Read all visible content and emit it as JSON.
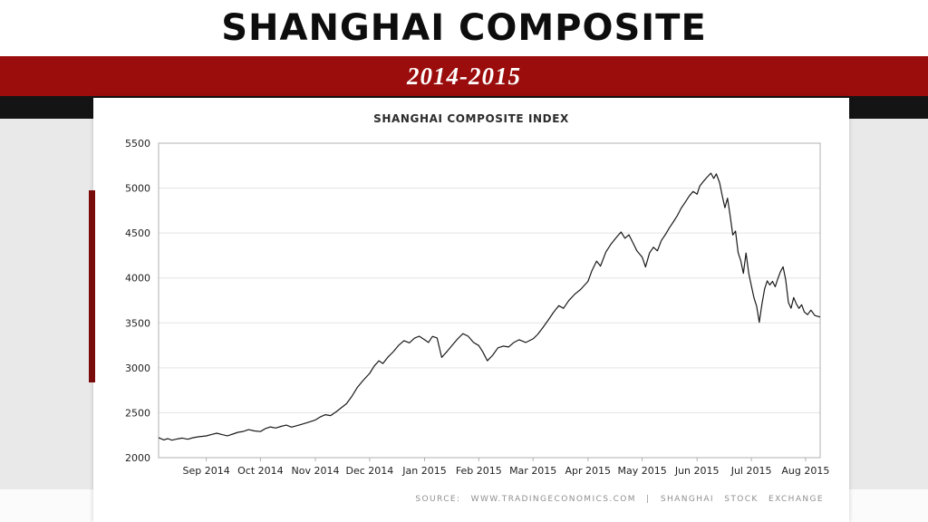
{
  "slide": {
    "title": "SHANGHAI COMPOSITE",
    "subtitle": "2014-2015"
  },
  "chart": {
    "title": "SHANGHAI COMPOSITE INDEX",
    "source": "SOURCE: WWW.TRADINGECONOMICS.COM | SHANGHAI STOCK EXCHANGE"
  },
  "colors": {
    "bg": "#e9e9e9",
    "red_band": "#9b0d0d",
    "accent_bar": "#7a0b0b",
    "black_band": "#141414",
    "grid": "#e3e3e3",
    "axis": "#b0b0b0",
    "line": "#1a1a1a"
  },
  "chart_data": {
    "type": "line",
    "title": "SHANGHAI COMPOSITE INDEX",
    "ylabel": "",
    "xlabel": "",
    "ylim": [
      2000,
      5500
    ],
    "yticks": [
      5500,
      5000,
      4500,
      4000,
      3500,
      3000,
      2500,
      2000
    ],
    "grid": true,
    "legend_position": "none",
    "xticks": [
      {
        "label": "Sep 2014",
        "pos": 0.072
      },
      {
        "label": "Oct 2014",
        "pos": 0.154
      },
      {
        "label": "Nov 2014",
        "pos": 0.237
      },
      {
        "label": "Dec 2014",
        "pos": 0.319
      },
      {
        "label": "Jan 2015",
        "pos": 0.402
      },
      {
        "label": "Feb 2015",
        "pos": 0.484
      },
      {
        "label": "Mar 2015",
        "pos": 0.566
      },
      {
        "label": "Apr 2015",
        "pos": 0.649
      },
      {
        "label": "May 2015",
        "pos": 0.731
      },
      {
        "label": "Jun 2015",
        "pos": 0.814
      },
      {
        "label": "Jul 2015",
        "pos": 0.896
      },
      {
        "label": "Aug 2015",
        "pos": 0.978
      }
    ],
    "series": [
      {
        "name": "Shanghai Composite Index",
        "points": [
          [
            0.0,
            2223
          ],
          [
            0.008,
            2198
          ],
          [
            0.014,
            2212
          ],
          [
            0.02,
            2195
          ],
          [
            0.028,
            2208
          ],
          [
            0.036,
            2218
          ],
          [
            0.044,
            2205
          ],
          [
            0.052,
            2222
          ],
          [
            0.06,
            2232
          ],
          [
            0.072,
            2242
          ],
          [
            0.08,
            2258
          ],
          [
            0.088,
            2272
          ],
          [
            0.096,
            2256
          ],
          [
            0.104,
            2243
          ],
          [
            0.112,
            2262
          ],
          [
            0.12,
            2282
          ],
          [
            0.128,
            2292
          ],
          [
            0.136,
            2312
          ],
          [
            0.145,
            2298
          ],
          [
            0.154,
            2290
          ],
          [
            0.161,
            2322
          ],
          [
            0.169,
            2342
          ],
          [
            0.177,
            2330
          ],
          [
            0.185,
            2348
          ],
          [
            0.193,
            2362
          ],
          [
            0.201,
            2340
          ],
          [
            0.209,
            2356
          ],
          [
            0.217,
            2372
          ],
          [
            0.226,
            2392
          ],
          [
            0.237,
            2420
          ],
          [
            0.244,
            2452
          ],
          [
            0.252,
            2478
          ],
          [
            0.26,
            2468
          ],
          [
            0.268,
            2508
          ],
          [
            0.276,
            2555
          ],
          [
            0.284,
            2600
          ],
          [
            0.292,
            2682
          ],
          [
            0.3,
            2778
          ],
          [
            0.309,
            2858
          ],
          [
            0.319,
            2938
          ],
          [
            0.326,
            3021
          ],
          [
            0.333,
            3078
          ],
          [
            0.339,
            3048
          ],
          [
            0.347,
            3122
          ],
          [
            0.355,
            3180
          ],
          [
            0.363,
            3252
          ],
          [
            0.371,
            3302
          ],
          [
            0.379,
            3278
          ],
          [
            0.387,
            3330
          ],
          [
            0.394,
            3352
          ],
          [
            0.402,
            3312
          ],
          [
            0.408,
            3282
          ],
          [
            0.414,
            3350
          ],
          [
            0.421,
            3332
          ],
          [
            0.428,
            3116
          ],
          [
            0.436,
            3182
          ],
          [
            0.444,
            3252
          ],
          [
            0.452,
            3322
          ],
          [
            0.46,
            3380
          ],
          [
            0.468,
            3352
          ],
          [
            0.476,
            3282
          ],
          [
            0.484,
            3248
          ],
          [
            0.49,
            3178
          ],
          [
            0.497,
            3078
          ],
          [
            0.505,
            3140
          ],
          [
            0.513,
            3222
          ],
          [
            0.521,
            3242
          ],
          [
            0.529,
            3232
          ],
          [
            0.537,
            3282
          ],
          [
            0.545,
            3312
          ],
          [
            0.555,
            3282
          ],
          [
            0.566,
            3322
          ],
          [
            0.573,
            3372
          ],
          [
            0.581,
            3448
          ],
          [
            0.589,
            3532
          ],
          [
            0.597,
            3618
          ],
          [
            0.605,
            3692
          ],
          [
            0.612,
            3662
          ],
          [
            0.62,
            3748
          ],
          [
            0.629,
            3820
          ],
          [
            0.638,
            3872
          ],
          [
            0.649,
            3962
          ],
          [
            0.655,
            4082
          ],
          [
            0.662,
            4188
          ],
          [
            0.668,
            4132
          ],
          [
            0.676,
            4288
          ],
          [
            0.684,
            4378
          ],
          [
            0.692,
            4452
          ],
          [
            0.699,
            4512
          ],
          [
            0.705,
            4442
          ],
          [
            0.711,
            4480
          ],
          [
            0.717,
            4392
          ],
          [
            0.723,
            4302
          ],
          [
            0.731,
            4232
          ],
          [
            0.736,
            4122
          ],
          [
            0.742,
            4278
          ],
          [
            0.748,
            4342
          ],
          [
            0.754,
            4302
          ],
          [
            0.76,
            4418
          ],
          [
            0.766,
            4482
          ],
          [
            0.772,
            4558
          ],
          [
            0.778,
            4622
          ],
          [
            0.784,
            4692
          ],
          [
            0.79,
            4778
          ],
          [
            0.796,
            4842
          ],
          [
            0.802,
            4912
          ],
          [
            0.808,
            4962
          ],
          [
            0.814,
            4932
          ],
          [
            0.818,
            5022
          ],
          [
            0.824,
            5078
          ],
          [
            0.829,
            5122
          ],
          [
            0.835,
            5166
          ],
          [
            0.839,
            5108
          ],
          [
            0.843,
            5158
          ],
          [
            0.848,
            5062
          ],
          [
            0.852,
            4912
          ],
          [
            0.856,
            4782
          ],
          [
            0.86,
            4888
          ],
          [
            0.864,
            4692
          ],
          [
            0.868,
            4478
          ],
          [
            0.872,
            4522
          ],
          [
            0.876,
            4282
          ],
          [
            0.88,
            4192
          ],
          [
            0.884,
            4052
          ],
          [
            0.888,
            4278
          ],
          [
            0.892,
            4052
          ],
          [
            0.896,
            3912
          ],
          [
            0.9,
            3778
          ],
          [
            0.904,
            3686
          ],
          [
            0.908,
            3507
          ],
          [
            0.912,
            3712
          ],
          [
            0.916,
            3878
          ],
          [
            0.92,
            3968
          ],
          [
            0.924,
            3922
          ],
          [
            0.928,
            3962
          ],
          [
            0.932,
            3902
          ],
          [
            0.936,
            3992
          ],
          [
            0.94,
            4070
          ],
          [
            0.944,
            4124
          ],
          [
            0.948,
            3978
          ],
          [
            0.952,
            3726
          ],
          [
            0.956,
            3663
          ],
          [
            0.96,
            3782
          ],
          [
            0.964,
            3712
          ],
          [
            0.968,
            3662
          ],
          [
            0.972,
            3702
          ],
          [
            0.976,
            3622
          ],
          [
            0.981,
            3592
          ],
          [
            0.986,
            3642
          ],
          [
            0.992,
            3582
          ],
          [
            1.0,
            3565
          ]
        ]
      }
    ]
  }
}
